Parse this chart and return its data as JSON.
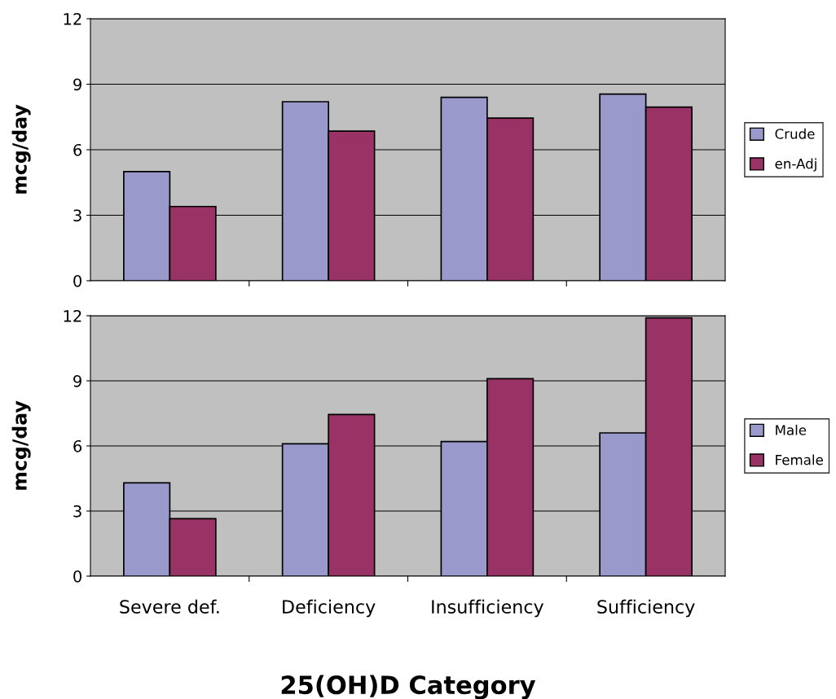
{
  "chart_data": [
    {
      "type": "bar",
      "ylabel": "mcg/day",
      "categories": [
        null,
        null,
        null,
        null
      ],
      "series": [
        {
          "name": "Crude",
          "color": "#9999cc",
          "values": [
            5.0,
            8.2,
            8.4,
            8.55
          ]
        },
        {
          "name": "en-Adj",
          "color": "#993366",
          "values": [
            3.4,
            6.85,
            7.45,
            7.95
          ]
        }
      ],
      "ylim": [
        0,
        12
      ],
      "yticks": [
        0,
        3,
        6,
        9,
        12
      ],
      "grid": "y",
      "legend": "right",
      "tick_labels": "y"
    },
    {
      "type": "bar",
      "ylabel": "mcg/day",
      "xlabel": "25(OH)D Category",
      "categories": [
        "Severe def.",
        "Deficiency",
        "Insufficiency",
        "Sufficiency"
      ],
      "series": [
        {
          "name": "Male",
          "color": "#9999cc",
          "values": [
            4.3,
            6.1,
            6.2,
            6.6
          ]
        },
        {
          "name": "Female",
          "color": "#993366",
          "values": [
            2.65,
            7.45,
            9.1,
            11.9
          ]
        }
      ],
      "ylim": [
        0,
        12
      ],
      "yticks": [
        0,
        3,
        6,
        9,
        12
      ],
      "grid": "y",
      "legend": "right"
    }
  ]
}
